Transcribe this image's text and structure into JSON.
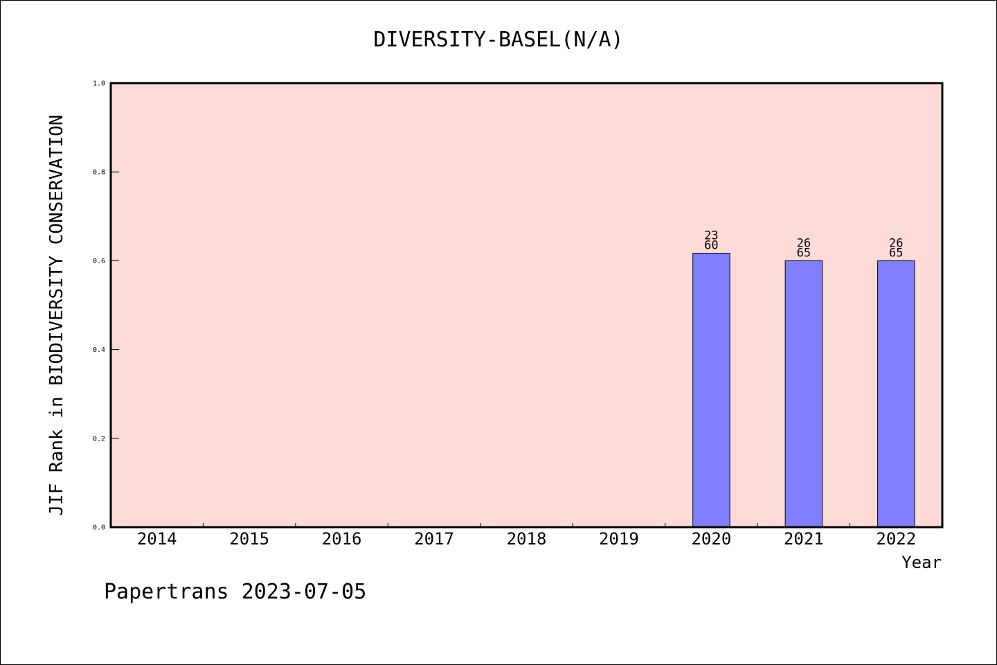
{
  "chart_data": {
    "type": "bar",
    "title": "DIVERSITY-BASEL(N/A)",
    "ylabel": "JIF Rank in BIODIVERSITY CONSERVATION",
    "xlabel": "Year",
    "categories": [
      "2014",
      "2015",
      "2016",
      "2017",
      "2018",
      "2019",
      "2020",
      "2021",
      "2022"
    ],
    "values": [
      null,
      null,
      null,
      null,
      null,
      null,
      0.617,
      0.6,
      0.6
    ],
    "bar_labels": [
      null,
      null,
      null,
      null,
      null,
      null,
      {
        "rank": "23",
        "total": "60"
      },
      {
        "rank": "26",
        "total": "65"
      },
      {
        "rank": "26",
        "total": "65"
      }
    ],
    "ylim": [
      0,
      1
    ],
    "yticks": [
      "0.0",
      "0.2",
      "0.4",
      "0.6",
      "0.8",
      "1.0"
    ],
    "grid": false,
    "colors": {
      "plot_background": "#fddbd8",
      "bar_fill": "#8080ff",
      "bar_edge": "#000000"
    }
  },
  "footer": "Papertrans 2023-07-05"
}
